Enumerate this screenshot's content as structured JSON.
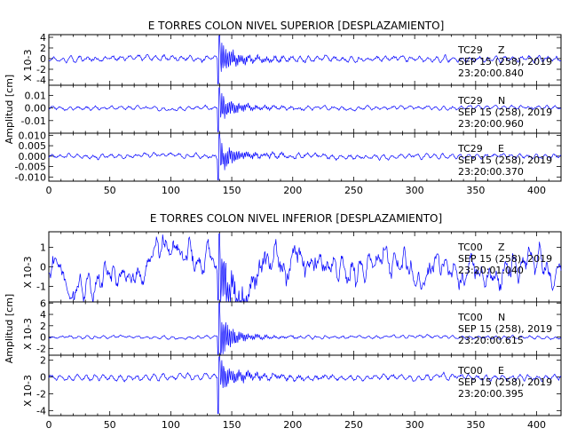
{
  "chart_data": [
    {
      "type": "line",
      "title": "E TORRES COLON NIVEL SUPERIOR [DESPLAZAMIENTO]",
      "ylabel": "Amplitud [cm]",
      "xlim": [
        0,
        420
      ],
      "xticks": [
        "0",
        "50",
        "100",
        "150",
        "200",
        "250",
        "300",
        "350",
        "400"
      ],
      "line_color": "#0000ff",
      "panels": [
        {
          "station": "TC29",
          "component": "Z",
          "date": "SEP 15 (258), 2019",
          "time": "23:20:00.840",
          "scale_label": "X 10-3",
          "ylim": [
            -5,
            4.5
          ],
          "ytick_values": [
            4,
            2,
            0,
            -2,
            -4
          ],
          "ytick_labels": [
            "4",
            "2",
            "0",
            "-2",
            "-4"
          ],
          "event_time_s": 140,
          "peak": 4.3,
          "noise_amplitude": 0.7
        },
        {
          "station": "TC29",
          "component": "N",
          "date": "SEP 15 (258), 2019",
          "time": "23:20:00.960",
          "scale_label": "",
          "ylim": [
            -0.02,
            0.018
          ],
          "ytick_values": [
            0.01,
            0.0,
            -0.01
          ],
          "ytick_labels": [
            "0.01",
            "0.00",
            "-0.01"
          ],
          "event_time_s": 140,
          "peak": 0.016,
          "noise_amplitude": 0.002
        },
        {
          "station": "TC29",
          "component": "E",
          "date": "SEP 15 (258), 2019",
          "time": "23:20:00.370",
          "scale_label": "",
          "ylim": [
            -0.012,
            0.011
          ],
          "ytick_values": [
            0.01,
            0.005,
            0.0,
            -0.005,
            -0.01
          ],
          "ytick_labels": [
            "0.010",
            "0.005",
            "0.000",
            "-0.005",
            "-0.010"
          ],
          "event_time_s": 140,
          "peak": 0.0105,
          "noise_amplitude": 0.0015
        }
      ]
    },
    {
      "type": "line",
      "title": "E TORRES COLON NIVEL INFERIOR [DESPLAZAMIENTO]",
      "ylabel": "Amplitud [cm]",
      "xlim": [
        0,
        420
      ],
      "xticks": [
        "0",
        "50",
        "100",
        "150",
        "200",
        "250",
        "300",
        "350",
        "400"
      ],
      "line_color": "#0000ff",
      "panels": [
        {
          "station": "TC00",
          "component": "Z",
          "date": "SEP 15 (258), 2019",
          "time": "23:20:01.040",
          "scale_label": "X 10-3",
          "ylim": [
            -1.8,
            1.8
          ],
          "ytick_values": [
            1,
            0,
            -1
          ],
          "ytick_labels": [
            "1",
            "0",
            "-1"
          ],
          "event_time_s": 140,
          "peak": 1.7,
          "noise_amplitude": 0.55
        },
        {
          "station": "TC00",
          "component": "N",
          "date": "SEP 15 (258), 2019",
          "time": "23:20:00.615",
          "scale_label": "X 10-3",
          "ylim": [
            -3.2,
            6.2
          ],
          "ytick_values": [
            6,
            4,
            2,
            0,
            -2
          ],
          "ytick_labels": [
            "6",
            "4",
            "2",
            "0",
            "-2"
          ],
          "event_time_s": 140,
          "peak": 6,
          "noise_amplitude": 0.35
        },
        {
          "station": "TC00",
          "component": "E",
          "date": "SEP 15 (258), 2019",
          "time": "23:20:00.395",
          "scale_label": "X 10-3",
          "ylim": [
            -4.6,
            2.6
          ],
          "ytick_values": [
            2,
            0,
            -2,
            -4
          ],
          "ytick_labels": [
            "2",
            "0",
            "-2",
            "-4"
          ],
          "event_time_s": 140,
          "peak": 2.4,
          "noise_amplitude": 0.45
        }
      ]
    }
  ]
}
